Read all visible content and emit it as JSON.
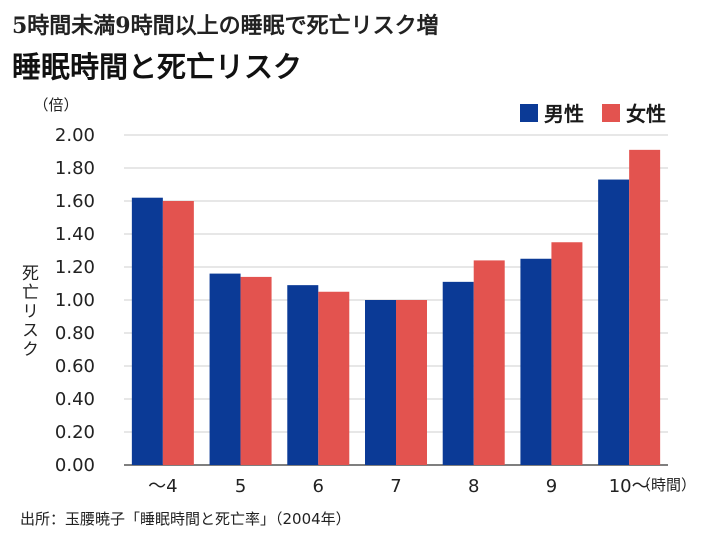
{
  "subtitle": "5時間未満9時間以上の睡眠で死亡リスク増",
  "title": "睡眠時間と死亡リスク",
  "source": "出所：玉腰暁子「睡眠時間と死亡率」（2004年）",
  "colors": {
    "male": "#0b3a96",
    "female": "#e3534f",
    "grid": "#cfcfcf",
    "axis": "#555555"
  },
  "chart_data": {
    "type": "bar",
    "title": "睡眠時間と死亡リスク",
    "ylabel": "死亡リスク",
    "y_unit": "（倍）",
    "x_unit": "（時間）",
    "categories": [
      "〜4",
      "5",
      "6",
      "7",
      "8",
      "9",
      "10〜"
    ],
    "series": [
      {
        "name": "男性",
        "color": "#0b3a96",
        "values": [
          1.62,
          1.16,
          1.09,
          1.0,
          1.11,
          1.25,
          1.73
        ]
      },
      {
        "name": "女性",
        "color": "#e3534f",
        "values": [
          1.6,
          1.14,
          1.05,
          1.0,
          1.24,
          1.35,
          1.91
        ]
      }
    ],
    "ylim": [
      0,
      2.0
    ],
    "yticks": [
      "0.00",
      "0.20",
      "0.40",
      "0.60",
      "0.80",
      "1.00",
      "1.20",
      "1.40",
      "1.60",
      "1.80",
      "2.00"
    ],
    "grid": true,
    "legend_position": "top-right"
  }
}
